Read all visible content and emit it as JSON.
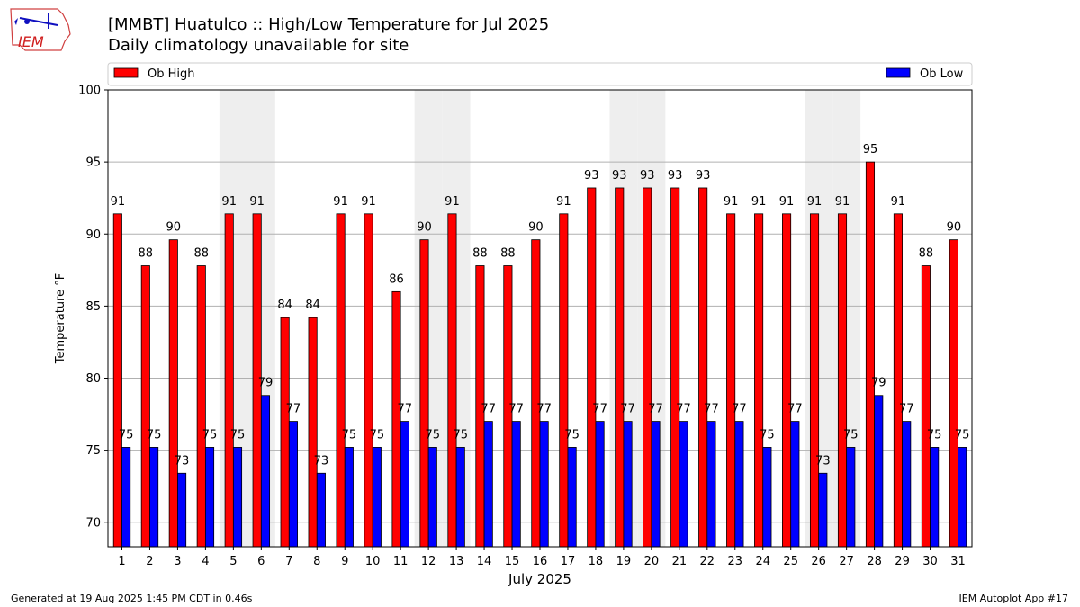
{
  "header": {
    "logo_text": "IEM",
    "title": "[MMBT] Huatulco :: High/Low Temperature for Jul 2025",
    "subtitle": "Daily climatology unavailable for site"
  },
  "footer": {
    "generated": "Generated at 19 Aug 2025 1:45 PM CDT in 0.46s",
    "app": "IEM Autoplot App #17"
  },
  "colors": {
    "high": "#ff0000",
    "low": "#0000ff",
    "weekend_shade": "#eeeeee",
    "grid": "#b0b0b0"
  },
  "chart_data": {
    "type": "bar",
    "xlabel": "July 2025",
    "ylabel": "Temperature °F",
    "ylim": [
      68.3,
      100
    ],
    "yticks": [
      70,
      75,
      80,
      85,
      90,
      95,
      100
    ],
    "grid": "horizontal",
    "legend_placement": "top",
    "categories": [
      "1",
      "2",
      "3",
      "4",
      "5",
      "6",
      "7",
      "8",
      "9",
      "10",
      "11",
      "12",
      "13",
      "14",
      "15",
      "16",
      "17",
      "18",
      "19",
      "20",
      "21",
      "22",
      "23",
      "24",
      "25",
      "26",
      "27",
      "28",
      "29",
      "30",
      "31"
    ],
    "shaded_days": [
      5,
      6,
      12,
      13,
      19,
      20,
      26,
      27
    ],
    "series": [
      {
        "name": "Ob High",
        "color": "#ff0000",
        "values": [
          91.4,
          87.8,
          89.6,
          87.8,
          91.4,
          91.4,
          84.2,
          84.2,
          91.4,
          91.4,
          86.0,
          89.6,
          91.4,
          87.8,
          87.8,
          89.6,
          91.4,
          93.2,
          93.2,
          93.2,
          93.2,
          93.2,
          91.4,
          91.4,
          91.4,
          91.4,
          91.4,
          95.0,
          91.4,
          87.8,
          89.6
        ],
        "labels": [
          "91",
          "88",
          "90",
          "88",
          "91",
          "91",
          "84",
          "84",
          "91",
          "91",
          "86",
          "90",
          "91",
          "88",
          "88",
          "90",
          "91",
          "93",
          "93",
          "93",
          "93",
          "93",
          "91",
          "91",
          "91",
          "91",
          "91",
          "95",
          "91",
          "88",
          "90"
        ]
      },
      {
        "name": "Ob Low",
        "color": "#0000ff",
        "values": [
          75.2,
          75.2,
          73.4,
          75.2,
          75.2,
          78.8,
          77.0,
          73.4,
          75.2,
          75.2,
          77.0,
          75.2,
          75.2,
          77.0,
          77.0,
          77.0,
          75.2,
          77.0,
          77.0,
          77.0,
          77.0,
          77.0,
          77.0,
          75.2,
          77.0,
          73.4,
          75.2,
          78.8,
          77.0,
          75.2,
          75.2
        ],
        "labels": [
          "75",
          "75",
          "73",
          "75",
          "75",
          "79",
          "77",
          "73",
          "75",
          "75",
          "77",
          "75",
          "75",
          "77",
          "77",
          "77",
          "75",
          "77",
          "77",
          "77",
          "77",
          "77",
          "77",
          "75",
          "77",
          "73",
          "75",
          "79",
          "77",
          "75",
          "75"
        ]
      }
    ]
  }
}
